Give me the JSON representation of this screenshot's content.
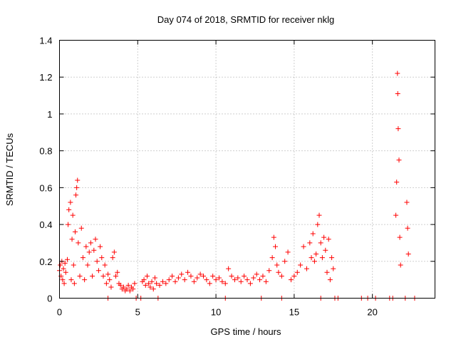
{
  "chart_data": {
    "type": "scatter",
    "title": "Day 074 of 2018, SRMTID for receiver nklg",
    "xlabel": "GPS time / hours",
    "ylabel": "SRMTID / TECUs",
    "xlim": [
      0,
      24
    ],
    "ylim": [
      0,
      1.4
    ],
    "xticks": [
      0,
      5,
      10,
      15,
      20
    ],
    "xtick_labels": [
      "0",
      "5",
      "10",
      "15",
      "20"
    ],
    "yticks": [
      0,
      0.2,
      0.4,
      0.6,
      0.8,
      1.0,
      1.2,
      1.4
    ],
    "ytick_labels": [
      "0",
      "0.2",
      "0.4",
      "0.6",
      "0.8",
      "1",
      "1.2",
      "1.4"
    ],
    "grid": true,
    "marker": "+",
    "series": [
      {
        "name": "SRMTID",
        "color": "#ff0000",
        "x": [
          0.0,
          0.05,
          0.1,
          0.15,
          0.2,
          0.25,
          0.3,
          0.35,
          0.4,
          0.5,
          0.55,
          0.6,
          0.7,
          0.75,
          0.8,
          0.85,
          0.9,
          0.95,
          1.0,
          1.05,
          1.1,
          1.15,
          1.2,
          1.3,
          1.4,
          1.5,
          1.6,
          1.7,
          1.8,
          1.9,
          2.0,
          2.1,
          2.2,
          2.3,
          2.4,
          2.5,
          2.6,
          2.7,
          2.8,
          2.9,
          3.0,
          3.1,
          3.2,
          3.3,
          3.4,
          3.5,
          3.6,
          3.7,
          3.8,
          3.9,
          4.0,
          4.1,
          4.2,
          4.3,
          4.4,
          4.5,
          4.6,
          4.7,
          4.8,
          5.3,
          5.4,
          5.5,
          5.6,
          5.7,
          5.8,
          5.9,
          6.0,
          6.1,
          6.2,
          6.4,
          6.6,
          6.8,
          7.0,
          7.2,
          7.4,
          7.6,
          7.8,
          8.0,
          8.2,
          8.4,
          8.6,
          8.8,
          9.0,
          9.2,
          9.4,
          9.6,
          9.8,
          10.0,
          10.2,
          10.4,
          10.6,
          10.8,
          11.0,
          11.2,
          11.4,
          11.6,
          11.8,
          12.0,
          12.2,
          12.4,
          12.6,
          12.8,
          13.0,
          13.2,
          13.4,
          13.6,
          13.7,
          13.8,
          13.9,
          14.0,
          14.2,
          14.4,
          14.6,
          14.8,
          15.0,
          15.2,
          15.4,
          15.6,
          15.8,
          16.0,
          16.1,
          16.2,
          16.3,
          16.4,
          16.5,
          16.6,
          16.7,
          16.8,
          16.9,
          17.0,
          17.1,
          17.2,
          17.3,
          17.4,
          17.5,
          21.5,
          21.55,
          21.6,
          21.62,
          21.65,
          21.7,
          21.75,
          21.8,
          22.2,
          22.25,
          22.3,
          3.1,
          4.9,
          5.2,
          6.3,
          10.6,
          12.9,
          14.2,
          16.7,
          17.6,
          17.8,
          19.3,
          19.7,
          20.2,
          21.1,
          21.3,
          22.1,
          22.7
        ],
        "y": [
          0.15,
          0.18,
          0.12,
          0.2,
          0.1,
          0.16,
          0.08,
          0.19,
          0.14,
          0.21,
          0.4,
          0.48,
          0.52,
          0.1,
          0.32,
          0.45,
          0.18,
          0.08,
          0.36,
          0.56,
          0.6,
          0.64,
          0.3,
          0.12,
          0.38,
          0.22,
          0.1,
          0.28,
          0.18,
          0.25,
          0.3,
          0.12,
          0.26,
          0.32,
          0.2,
          0.15,
          0.28,
          0.22,
          0.12,
          0.18,
          0.08,
          0.13,
          0.1,
          0.06,
          0.22,
          0.25,
          0.12,
          0.14,
          0.08,
          0.07,
          0.05,
          0.06,
          0.04,
          0.05,
          0.07,
          0.04,
          0.06,
          0.05,
          0.08,
          0.09,
          0.1,
          0.07,
          0.12,
          0.08,
          0.06,
          0.09,
          0.05,
          0.11,
          0.08,
          0.07,
          0.09,
          0.08,
          0.1,
          0.12,
          0.09,
          0.11,
          0.13,
          0.1,
          0.14,
          0.12,
          0.09,
          0.11,
          0.13,
          0.12,
          0.1,
          0.08,
          0.12,
          0.1,
          0.11,
          0.09,
          0.08,
          0.16,
          0.12,
          0.1,
          0.11,
          0.09,
          0.12,
          0.1,
          0.08,
          0.11,
          0.13,
          0.1,
          0.12,
          0.09,
          0.15,
          0.22,
          0.33,
          0.28,
          0.18,
          0.14,
          0.12,
          0.2,
          0.25,
          0.1,
          0.12,
          0.14,
          0.18,
          0.28,
          0.16,
          0.3,
          0.22,
          0.35,
          0.2,
          0.24,
          0.4,
          0.45,
          0.3,
          0.22,
          0.33,
          0.26,
          0.14,
          0.32,
          0.1,
          0.22,
          0.16,
          0.45,
          0.63,
          1.22,
          1.11,
          0.92,
          0.75,
          0.33,
          0.18,
          0.52,
          0.38,
          0.24,
          0.0,
          0.0,
          0.0,
          0.0,
          0.0,
          0.0,
          0.0,
          0.0,
          0.0,
          0.0,
          0.0,
          0.0,
          0.0,
          0.0,
          0.0,
          0.0,
          0.0
        ]
      }
    ]
  }
}
